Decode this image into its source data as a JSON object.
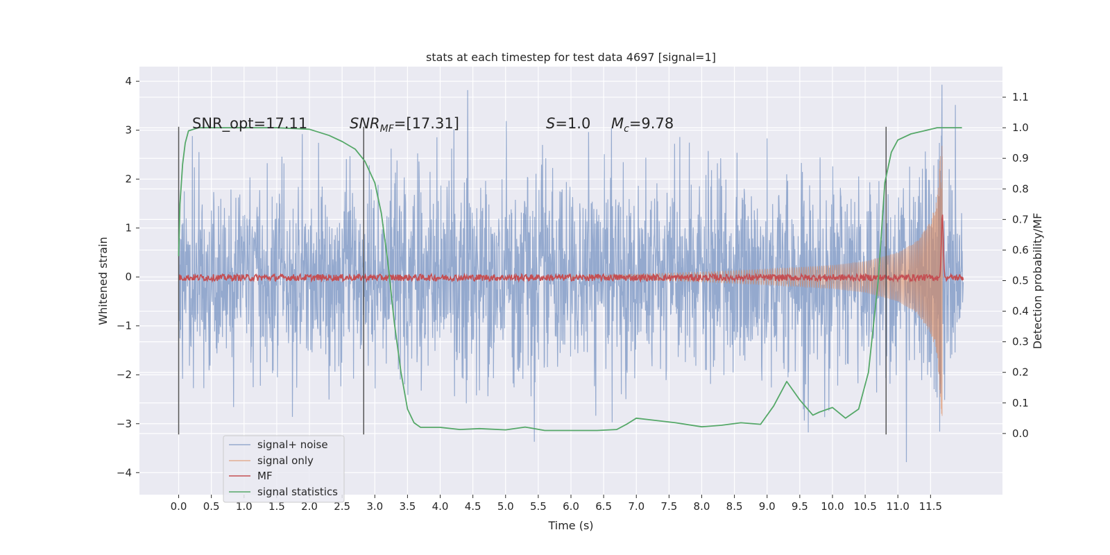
{
  "chart_data": {
    "type": "line",
    "title": "stats at each timestep for test data 4697 [signal=1]",
    "xlabel": "Time (s)",
    "ylabel": "Whitened strain",
    "ylabel_right": "Detection probability/MF",
    "xlim": [
      -0.6,
      12.6
    ],
    "ylim": [
      -4.45,
      4.3
    ],
    "ylim_right": [
      -0.2,
      1.2
    ],
    "x_ticks": [
      0.0,
      0.5,
      1.0,
      1.5,
      2.0,
      2.5,
      3.0,
      3.5,
      4.0,
      4.5,
      5.0,
      5.5,
      6.0,
      6.5,
      7.0,
      7.5,
      8.0,
      8.5,
      9.0,
      9.5,
      10.0,
      10.5,
      11.0,
      11.5
    ],
    "x_tick_labels": [
      "0.0",
      "0.5",
      "1.0",
      "1.5",
      "2.0",
      "2.5",
      "3.0",
      "3.5",
      "4.0",
      "4.5",
      "5.0",
      "5.5",
      "6.0",
      "6.5",
      "7.0",
      "7.5",
      "8.0",
      "8.5",
      "9.0",
      "9.5",
      "10.0",
      "10.5",
      "11.0",
      "11.5"
    ],
    "y_ticks": [
      -4,
      -3,
      -2,
      -1,
      0,
      1,
      2,
      3,
      4
    ],
    "y_tick_labels": [
      "−4",
      "−3",
      "−2",
      "−1",
      "0",
      "1",
      "2",
      "3",
      "4"
    ],
    "y_ticks_right": [
      0.0,
      0.1,
      0.2,
      0.3,
      0.4,
      0.5,
      0.6,
      0.7,
      0.8,
      0.9,
      1.0,
      1.1
    ],
    "y_tick_labels_right": [
      "0.0",
      "0.1",
      "0.2",
      "0.3",
      "0.4",
      "0.5",
      "0.6",
      "0.7",
      "0.8",
      "0.9",
      "1.0",
      "1.1"
    ],
    "grid": true,
    "legend_position": "lower-left",
    "annotations": {
      "snr_opt": "SNR_opt=17.11",
      "snr_mf_sym": "SNR",
      "snr_mf_sub": "MF",
      "snr_mf_val": "=[17.31]",
      "s_sym": "S",
      "s_val": "=1.0",
      "mc_sym": "M",
      "mc_sub": "c",
      "mc_val": "=9.78"
    },
    "vertical_lines_x": [
      0.0,
      2.83,
      10.82
    ],
    "series": [
      {
        "name": "signal+ noise",
        "color": "#4c72b0",
        "axis": "left",
        "t_range": [
          0.0,
          12.0
        ],
        "envelope": {
          "typical_amplitude": 1.0,
          "extreme_max": 3.93,
          "extreme_min": -4.07
        }
      },
      {
        "name": "signal only",
        "color": "#dd8452",
        "axis": "left",
        "chirp_envelope": {
          "x": [
            0,
            6.5,
            8.0,
            9.0,
            10.0,
            10.5,
            11.0,
            11.3,
            11.5,
            11.6,
            11.68
          ],
          "amplitude": [
            0.0,
            0.04,
            0.1,
            0.16,
            0.24,
            0.32,
            0.5,
            0.75,
            1.15,
            1.6,
            3.05
          ]
        },
        "peak_time": 11.68
      },
      {
        "name": "MF",
        "color": "#c44e52",
        "axis": "right",
        "baseline": 0.51,
        "peak": {
          "x": 11.68,
          "y": 0.72
        }
      },
      {
        "name": "signal statistics",
        "color": "#55a868",
        "axis": "right",
        "x": [
          0.0,
          0.02,
          0.06,
          0.1,
          0.15,
          0.3,
          0.6,
          1.0,
          1.5,
          2.0,
          2.3,
          2.5,
          2.7,
          2.85,
          3.0,
          3.1,
          3.2,
          3.3,
          3.4,
          3.5,
          3.6,
          3.7,
          3.8,
          4.0,
          4.3,
          4.6,
          5.0,
          5.3,
          5.6,
          6.0,
          6.4,
          6.7,
          6.85,
          7.0,
          7.2,
          7.6,
          8.0,
          8.3,
          8.6,
          8.9,
          9.1,
          9.3,
          9.5,
          9.7,
          9.8,
          10.0,
          10.2,
          10.4,
          10.55,
          10.7,
          10.8,
          10.9,
          11.0,
          11.2,
          11.4,
          11.6,
          11.8,
          11.98
        ],
        "y": [
          0.58,
          0.75,
          0.88,
          0.95,
          0.99,
          1.0,
          1.0,
          1.0,
          1.0,
          0.995,
          0.975,
          0.955,
          0.93,
          0.89,
          0.82,
          0.72,
          0.56,
          0.36,
          0.2,
          0.08,
          0.035,
          0.02,
          0.02,
          0.02,
          0.013,
          0.016,
          0.012,
          0.021,
          0.01,
          0.01,
          0.01,
          0.013,
          0.03,
          0.05,
          0.045,
          0.035,
          0.022,
          0.027,
          0.035,
          0.03,
          0.09,
          0.17,
          0.11,
          0.06,
          0.07,
          0.085,
          0.05,
          0.08,
          0.2,
          0.5,
          0.82,
          0.92,
          0.96,
          0.98,
          0.99,
          1.0,
          1.0,
          1.0
        ]
      }
    ]
  }
}
